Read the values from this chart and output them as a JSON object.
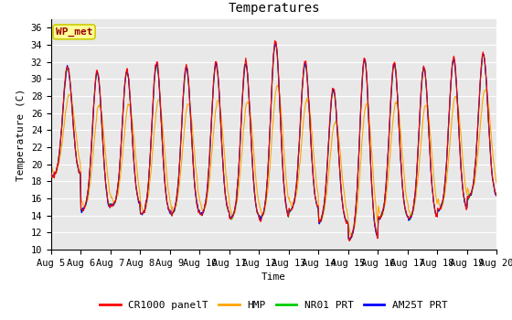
{
  "title": "Temperatures",
  "xlabel": "Time",
  "ylabel": "Temperature (C)",
  "ylim": [
    10,
    37
  ],
  "yticks": [
    10,
    12,
    14,
    16,
    18,
    20,
    22,
    24,
    26,
    28,
    30,
    32,
    34,
    36
  ],
  "n_days": 15,
  "colors": {
    "CR1000 panelT": "#ff0000",
    "HMP": "#ffa500",
    "NR01 PRT": "#00cc00",
    "AM25T PRT": "#0000ff"
  },
  "legend_labels": [
    "CR1000 panelT",
    "HMP",
    "NR01 PRT",
    "AM25T PRT"
  ],
  "annotation_text": "WP_met",
  "annotation_box_color": "#ffff99",
  "annotation_text_color": "#990000",
  "annotation_edge_color": "#cccc00",
  "plot_bg_color": "#e8e8e8",
  "grid_color": "#ffffff",
  "font_family": "DejaVu Sans Mono",
  "title_fontsize": 10,
  "label_fontsize": 8,
  "tick_fontsize": 7.5
}
